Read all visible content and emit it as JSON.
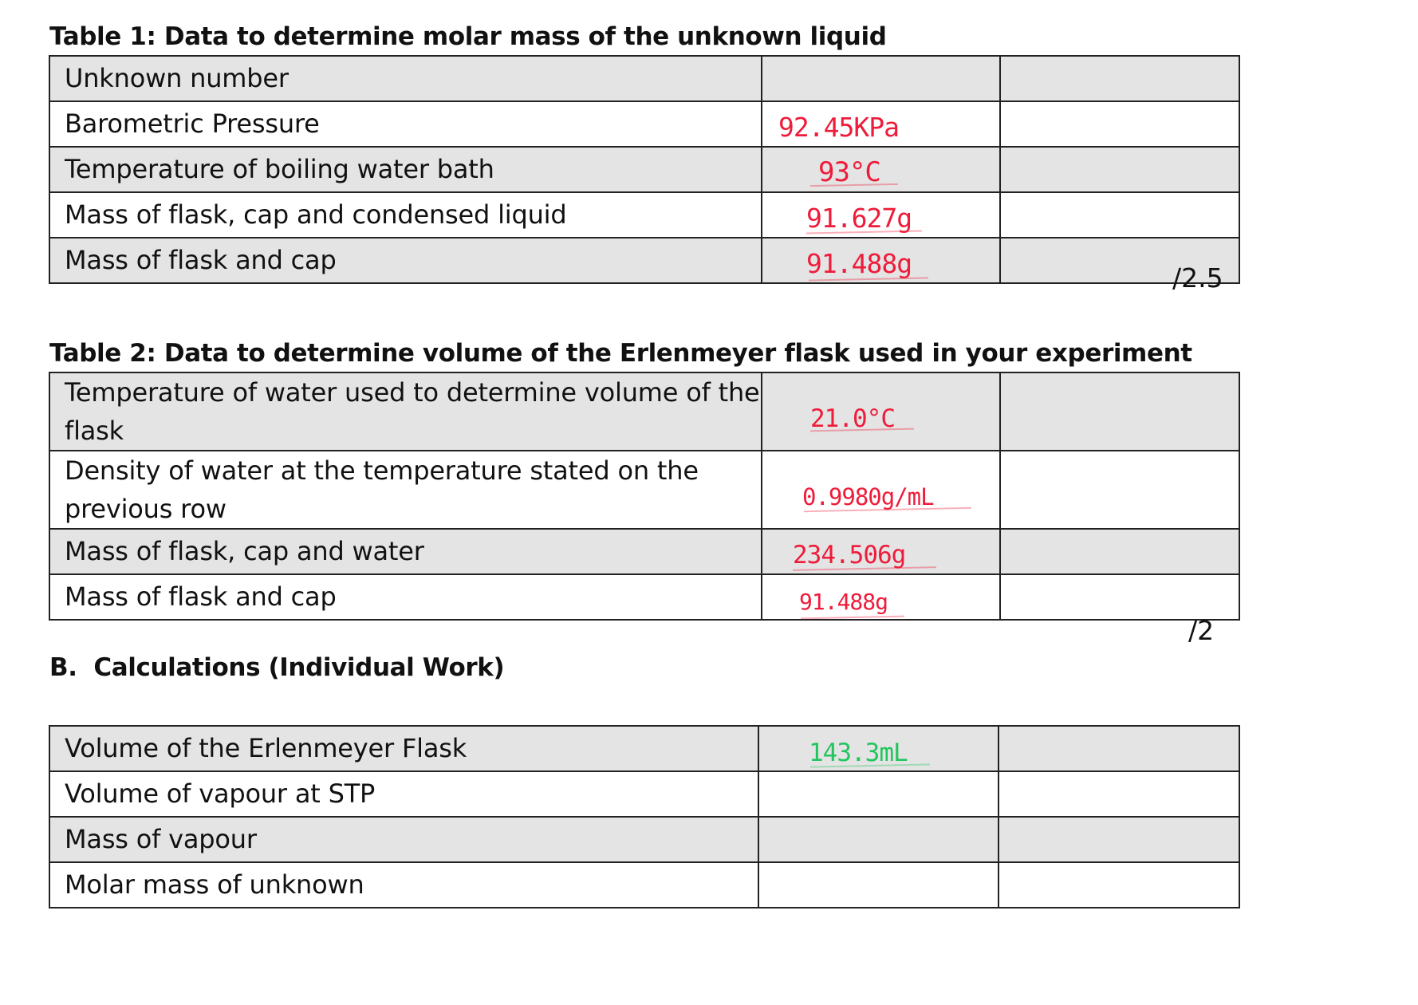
{
  "table1": {
    "title": "Table 1: Data to determine molar mass of the unknown liquid",
    "rows": [
      {
        "label": "Unknown number",
        "value": ""
      },
      {
        "label": "Barometric Pressure",
        "value": "92.45KPa"
      },
      {
        "label": "Temperature of boiling water bath",
        "value": "93°C"
      },
      {
        "label": "Mass of flask, cap and condensed liquid",
        "value": "91.627g"
      },
      {
        "label": "Mass of flask and cap",
        "value": "91.488g"
      }
    ],
    "score": "/2.5"
  },
  "table2": {
    "title": "Table 2: Data to determine volume of the Erlenmeyer flask used in your experiment",
    "rows": [
      {
        "label": "Temperature of water used to determine volume of the flask",
        "value": "21.0°C"
      },
      {
        "label": "Density of water at the temperature stated on the previous row",
        "value": "0.9980g/mL"
      },
      {
        "label": "Mass of flask, cap and water",
        "value": "234.506g"
      },
      {
        "label": "Mass of flask and cap",
        "value": "91.488g"
      }
    ],
    "score": "/2"
  },
  "section_b": {
    "heading": "B.  Calculations (Individual Work)"
  },
  "table3": {
    "rows": [
      {
        "label": "Volume of the Erlenmeyer Flask",
        "value": "143.3mL"
      },
      {
        "label": "Volume of vapour at STP",
        "value": ""
      },
      {
        "label": "Mass of vapour",
        "value": ""
      },
      {
        "label": "Molar mass of unknown",
        "value": ""
      }
    ]
  },
  "colors": {
    "handwriting_red": "#ee1c3a",
    "handwriting_green": "#22c55e",
    "row_shade": "#e4e4e4"
  }
}
